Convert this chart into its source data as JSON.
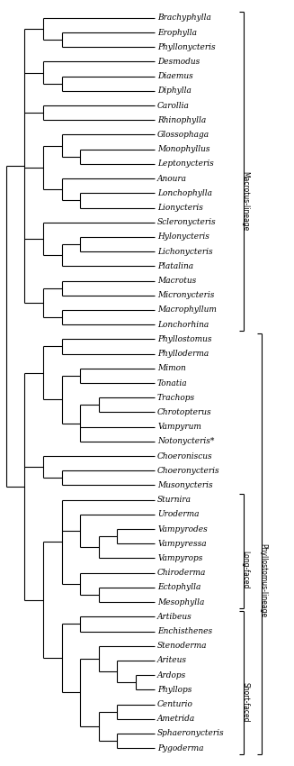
{
  "taxa": [
    "Brachyphylla",
    "Erophylla",
    "Phyllonycteris",
    "Desmodus",
    "Diaemus",
    "Diphylla",
    "Carollia",
    "Rhinophylla",
    "Glossophaga",
    "Monophyllus",
    "Leptonycteris",
    "Anoura",
    "Lonchophylla",
    "Lionycteris",
    "Scleronycteris",
    "Hylonycteris",
    "Lichonycteris",
    "Platalina",
    "Macrotus",
    "Micronycteris",
    "Macrophyllum",
    "Lonchorhina",
    "Phyllostomus",
    "Phylloderma",
    "Mimon",
    "Tonatia",
    "Trachops",
    "Chrotopterus",
    "Vampyrum",
    "Notonycteris*",
    "Choeroniscus",
    "Choeronycteris",
    "Musonycteris",
    "Sturnira",
    "Uroderma",
    "Vampyrodes",
    "Vampyressa",
    "Vampyrops",
    "Chiroderma",
    "Ectophylla",
    "Mesophylla",
    "Artibeus",
    "Enchisthenes",
    "Stenoderma",
    "Ariteus",
    "Ardops",
    "Phyllops",
    "Centurio",
    "Ametrida",
    "Sphaeronycteris",
    "Pygoderma"
  ],
  "background_color": "#ffffff",
  "line_color": "#000000",
  "text_color": "#000000",
  "fontsize": 6.5,
  "lw": 0.8,
  "fig_width": 3.27,
  "fig_height": 8.5,
  "dpi": 100
}
